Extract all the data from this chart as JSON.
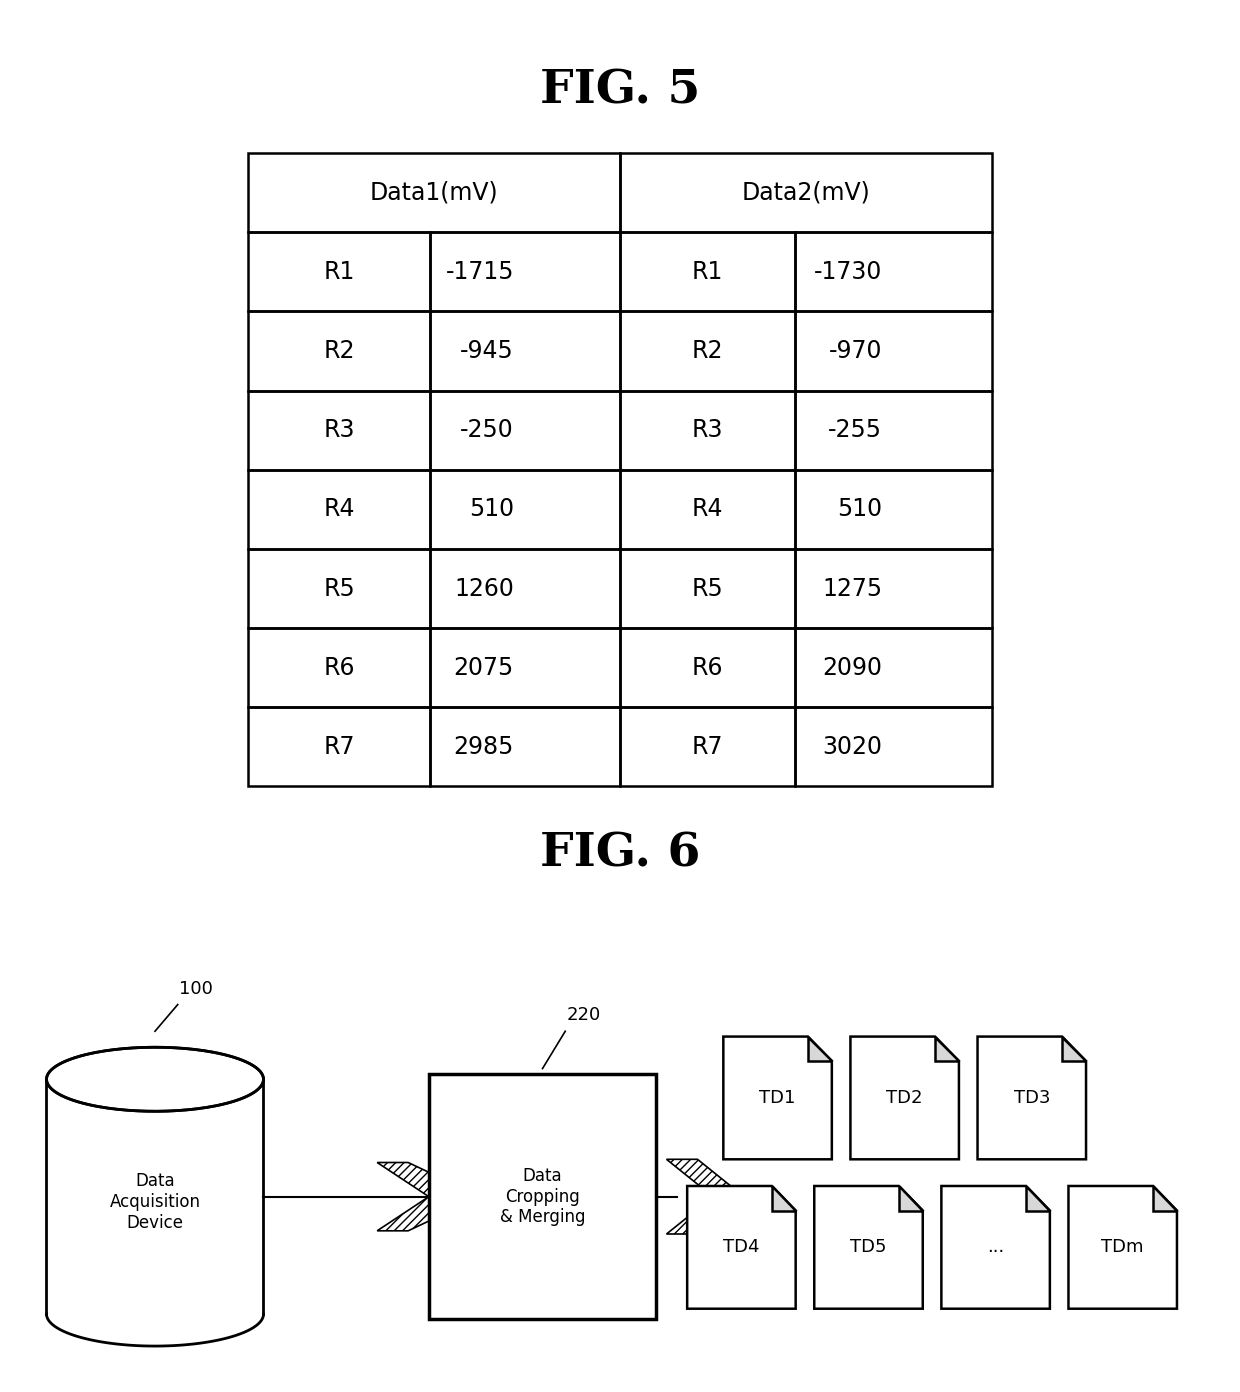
{
  "fig5_title": "FIG. 5",
  "fig6_title": "FIG. 6",
  "table_headers": [
    "Data1(mV)",
    "Data2(mV)"
  ],
  "table_rows": [
    [
      "R1",
      "-1715",
      "R1",
      "-1730"
    ],
    [
      "R2",
      "-945",
      "R2",
      "-970"
    ],
    [
      "R3",
      "-250",
      "R3",
      "-255"
    ],
    [
      "R4",
      "510",
      "R4",
      "510"
    ],
    [
      "R5",
      "1260",
      "R5",
      "1275"
    ],
    [
      "R6",
      "2075",
      "R6",
      "2090"
    ],
    [
      "R7",
      "2985",
      "R7",
      "3020"
    ]
  ],
  "bg_color": "#ffffff",
  "line_color": "#000000",
  "text_color": "#000000",
  "label_100": "100",
  "label_220": "220",
  "cylinder_label": "Data\nAcquisition\nDevice",
  "box_label": "Data\nCropping\n& Merging",
  "td_labels_top": [
    "TD1",
    "TD2",
    "TD3"
  ],
  "td_labels_bot": [
    "TD4",
    "TD5",
    "...",
    "TDm"
  ]
}
